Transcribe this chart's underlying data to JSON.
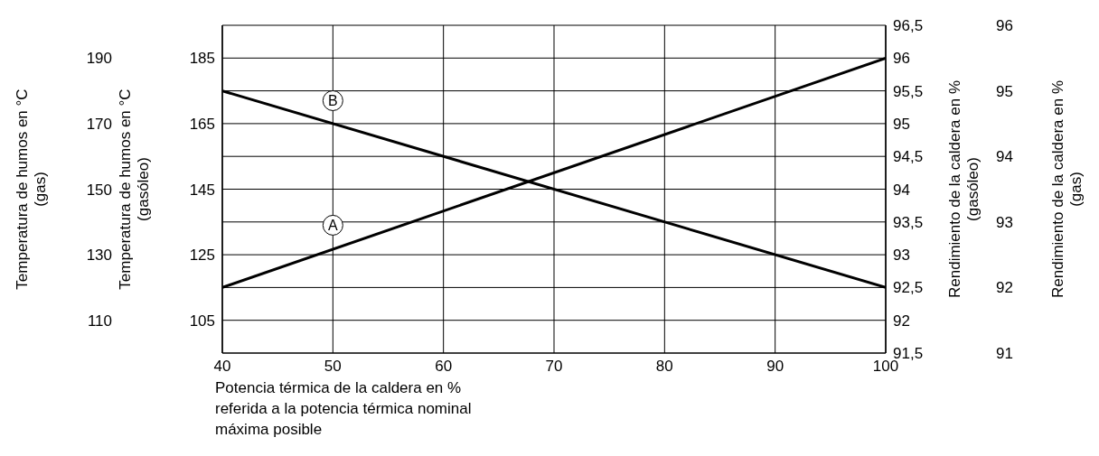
{
  "chart_data": [
    {
      "type": "line",
      "x": [
        40,
        100
      ],
      "series": [
        {
          "color": "#000000",
          "values": [
            92.5,
            96
          ],
          "axis": "y2"
        },
        {
          "color": "#000000",
          "values": [
            175,
            115
          ]
        }
      ],
      "xlim": [
        40,
        100
      ],
      "xticks": [
        40,
        50,
        60,
        70,
        80,
        90,
        100
      ],
      "xlabel": "Potencia térmica de la caldera en %\nreferida a la potencia térmica nominal\nmáxima posible",
      "ylim": [
        95,
        195
      ],
      "yticks": [
        105,
        125,
        145,
        165,
        185
      ],
      "ylabel": "Temperatura de humos en °C\n(gasóleo)",
      "y2lim": [
        91.5,
        96.5
      ],
      "y2ticks": [
        {
          "value": 91.5,
          "label": "91,5"
        },
        92,
        {
          "value": 92.5,
          "label": "92,5"
        },
        93,
        {
          "value": 93.5,
          "label": "93,5"
        },
        94,
        {
          "value": 94.5,
          "label": "94,5"
        },
        95,
        {
          "value": 95.5,
          "label": "95,5"
        },
        96,
        {
          "value": 96.5,
          "label": "96,5"
        }
      ],
      "y2label": "Rendimiento de la caldera en %\n(gasóleo)",
      "annotations": [
        {
          "text": "A",
          "x": 50,
          "y": 134
        },
        {
          "text": "B",
          "x": 50,
          "y": 172
        }
      ],
      "grid": true,
      "line_style": "solid",
      "marker": "none"
    },
    {
      "type": "line",
      "xlim": [
        40,
        100
      ],
      "tick_labels": "y",
      "ylim": [
        100,
        200
      ],
      "yticks": [
        110,
        130,
        150,
        170,
        190
      ],
      "ylabel": "Temperatura de humos en °C\n(gas)",
      "y2lim": [
        91,
        96
      ],
      "y2ticks": [
        91,
        92,
        93,
        94,
        95,
        96
      ],
      "y2label": "Rendimiento de la caldera en %\n(gas)"
    }
  ]
}
